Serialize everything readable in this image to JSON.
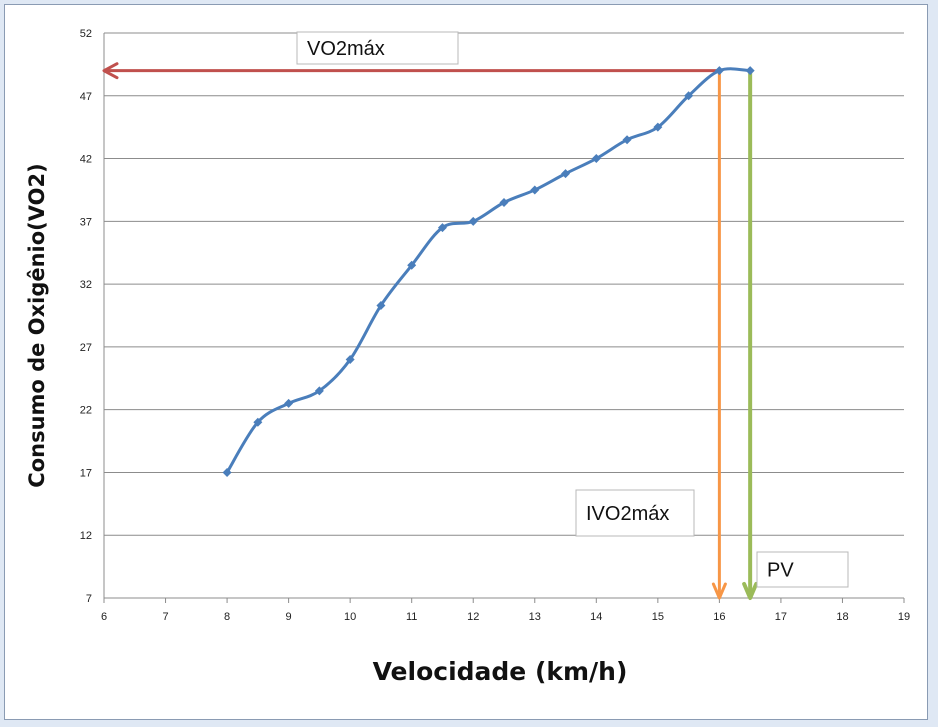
{
  "chart_data": {
    "type": "line",
    "xlabel": "Velocidade (km/h)",
    "ylabel": "Consumo de Oxigênio(VO2)",
    "xlim": [
      6,
      19
    ],
    "ylim": [
      7,
      52
    ],
    "xticks": [
      6,
      7,
      8,
      9,
      10,
      11,
      12,
      13,
      14,
      15,
      16,
      17,
      18,
      19
    ],
    "yticks": [
      7,
      12,
      17,
      22,
      27,
      32,
      37,
      42,
      47,
      52
    ],
    "grid": "horizontal",
    "series": [
      {
        "color": "#4a7ebb",
        "marker": "diamond",
        "x": [
          8,
          8.5,
          9,
          9.5,
          10,
          10.5,
          11,
          11.5,
          12,
          12.5,
          13,
          13.5,
          14,
          14.5,
          15,
          15.5,
          16,
          16.5
        ],
        "y": [
          17,
          21,
          22.5,
          23.5,
          26,
          30.3,
          33.5,
          36.5,
          37,
          38.5,
          39.5,
          40.8,
          42,
          43.5,
          44.5,
          47,
          49,
          49
        ]
      }
    ],
    "annotations": [
      {
        "label": "VO2máx",
        "type": "horizontal-arrow",
        "color": "#c0504d",
        "from": [
          16,
          49
        ],
        "to": [
          6,
          49
        ]
      },
      {
        "label": "IVO2máx",
        "type": "vertical-arrow",
        "color": "#f79646",
        "from": [
          16,
          49
        ],
        "to": [
          16,
          7
        ]
      },
      {
        "label": "PV",
        "type": "vertical-arrow",
        "color": "#9bbb59",
        "from": [
          16.5,
          49
        ],
        "to": [
          16.5,
          7
        ]
      }
    ]
  }
}
